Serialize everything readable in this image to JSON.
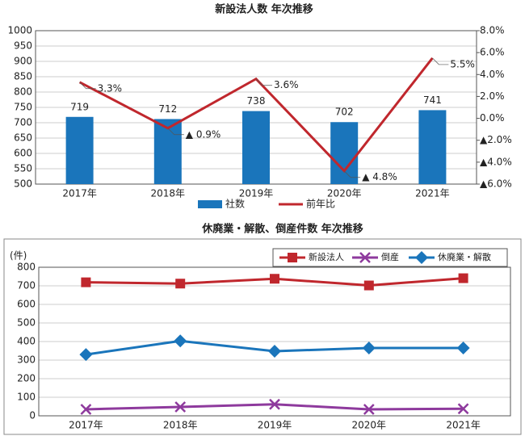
{
  "chart_data": [
    {
      "type": "bar",
      "title": "新設法人数 年次推移",
      "categories": [
        "2017年",
        "2018年",
        "2019年",
        "2020年",
        "2021年"
      ],
      "series": [
        {
          "name": "社数",
          "color": "#1a75bb",
          "values": [
            719,
            712,
            738,
            702,
            741
          ]
        },
        {
          "name": "前年比",
          "type": "line",
          "axis": "y2",
          "color": "#c0272d",
          "values": [
            3.3,
            -0.9,
            3.6,
            -4.8,
            5.5
          ],
          "value_labels": [
            "3.3%",
            "▲ 0.9%",
            "3.6%",
            "▲ 4.8%",
            "5.5%"
          ]
        }
      ],
      "ylim": [
        500,
        1000
      ],
      "yticks": [
        500,
        550,
        600,
        650,
        700,
        750,
        800,
        850,
        900,
        950,
        1000
      ],
      "y2lim": [
        -6,
        8
      ],
      "y2ticks": [
        {
          "value": -6,
          "label": "▲6.0%"
        },
        {
          "value": -4,
          "label": "▲4.0%"
        },
        {
          "value": -2,
          "label": "▲2.0%"
        },
        {
          "value": 0,
          "label": "0.0%"
        },
        {
          "value": 2,
          "label": "2.0%"
        },
        {
          "value": 4,
          "label": "4.0%"
        },
        {
          "value": 6,
          "label": "6.0%"
        },
        {
          "value": 8,
          "label": "8.0%"
        }
      ],
      "grid": true,
      "legend": "bottom"
    },
    {
      "type": "line",
      "title": "休廃業・解散、倒産件数 年次推移",
      "y_label": "(件)",
      "categories": [
        "2017年",
        "2018年",
        "2019年",
        "2020年",
        "2021年"
      ],
      "series": [
        {
          "name": "新設法人",
          "color": "#c0272d",
          "marker": "square",
          "values": [
            719,
            712,
            738,
            702,
            741
          ]
        },
        {
          "name": "倒産",
          "color": "#8e3a9d",
          "marker": "x",
          "values": [
            35,
            48,
            62,
            35,
            38
          ]
        },
        {
          "name": "休廃業・解散",
          "color": "#1a75bb",
          "marker": "diamond",
          "values": [
            330,
            403,
            348,
            365,
            365
          ]
        }
      ],
      "ylim": [
        0,
        800
      ],
      "yticks": [
        0,
        100,
        200,
        300,
        400,
        500,
        600,
        700,
        800
      ],
      "grid": true,
      "legend": "top-right"
    }
  ]
}
